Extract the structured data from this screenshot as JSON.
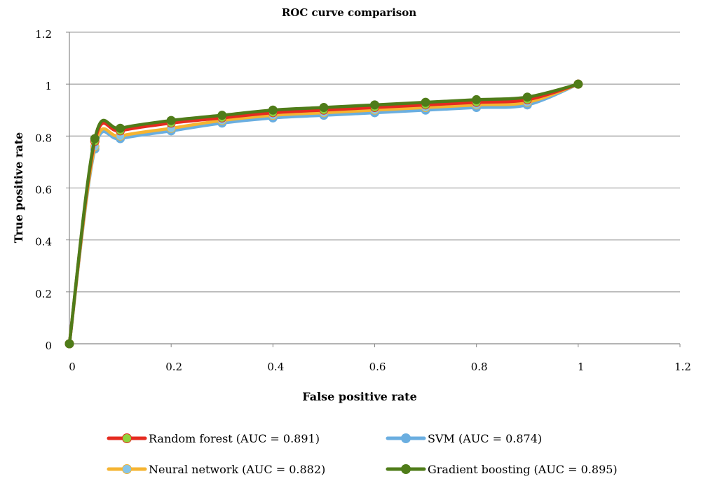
{
  "chart_data": {
    "type": "line",
    "title": "ROC curve comparison",
    "xlabel": "False positive rate",
    "ylabel": "True positive rate",
    "xlim": [
      0,
      1.2
    ],
    "ylim": [
      0,
      1.2
    ],
    "x_ticks": [
      {
        "value": 0,
        "label": "0"
      },
      {
        "value": 0.2,
        "label": "0.2"
      },
      {
        "value": 0.4,
        "label": "0.4"
      },
      {
        "value": 0.6,
        "label": "0.6"
      },
      {
        "value": 0.8,
        "label": "0.8"
      },
      {
        "value": 1,
        "label": "1"
      },
      {
        "value": 1.2,
        "label": "1.2"
      }
    ],
    "y_ticks": [
      {
        "value": 0,
        "label": "0"
      },
      {
        "value": 0.2,
        "label": "0.2"
      },
      {
        "value": 0.4,
        "label": "0.4"
      },
      {
        "value": 0.6,
        "label": "0.6"
      },
      {
        "value": 0.8,
        "label": "0.8"
      },
      {
        "value": 1,
        "label": "1"
      },
      {
        "value": 1.2,
        "label": "1.2"
      }
    ],
    "grid": "horizontal",
    "legend_position": "bottom",
    "x": [
      0,
      0.05,
      0.1,
      0.2,
      0.3,
      0.4,
      0.5,
      0.6,
      0.7,
      0.8,
      0.9,
      1
    ],
    "series": [
      {
        "name": "SVM (AUC = 0.874)",
        "color": "#6aaee0",
        "marker_color": "#6aaee0",
        "values": [
          0,
          0.75,
          0.79,
          0.82,
          0.85,
          0.87,
          0.88,
          0.89,
          0.9,
          0.91,
          0.92,
          1
        ]
      },
      {
        "name": "Neural network (AUC = 0.882)",
        "color": "#f5b431",
        "marker_color": "#86c5e8",
        "values": [
          0,
          0.76,
          0.8,
          0.83,
          0.86,
          0.88,
          0.89,
          0.9,
          0.91,
          0.92,
          0.93,
          1
        ]
      },
      {
        "name": "Random forest (AUC = 0.891)",
        "color": "#e52b20",
        "marker_color": "#8fd23c",
        "values": [
          0,
          0.78,
          0.82,
          0.85,
          0.87,
          0.89,
          0.9,
          0.91,
          0.92,
          0.93,
          0.94,
          1
        ]
      },
      {
        "name": "Gradient boosting (AUC = 0.895)",
        "color": "#4f7c19",
        "marker_color": "#4f7c19",
        "values": [
          0,
          0.79,
          0.83,
          0.86,
          0.88,
          0.9,
          0.91,
          0.92,
          0.93,
          0.94,
          0.95,
          1
        ]
      }
    ],
    "legend_order": [
      2,
      0,
      1,
      3
    ]
  }
}
